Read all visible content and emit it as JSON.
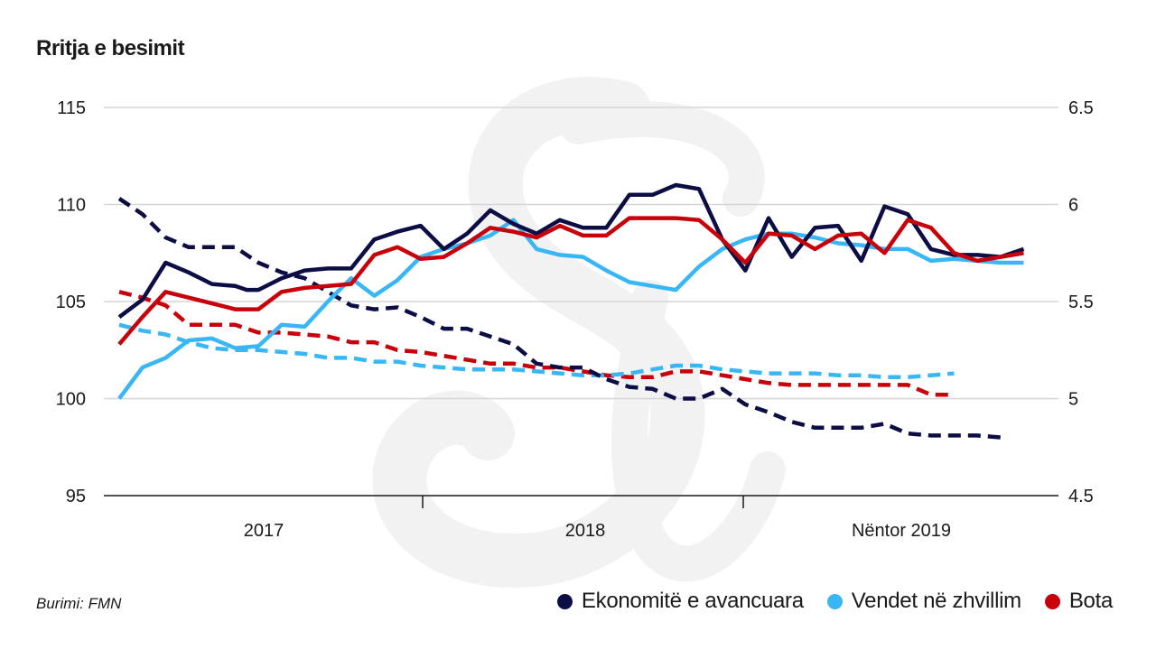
{
  "title": "Rritja e besimit",
  "source": "Burimi: FMN",
  "colors": {
    "advanced": "#0d0d45",
    "emerging": "#38b6f5",
    "world": "#c8000a",
    "grid": "#d6d6d6",
    "watermark": "#f2f2f2"
  },
  "legend": [
    {
      "label": "Ekonomitë e avancuara",
      "color": "#0d0d45",
      "icon": "circle-icon"
    },
    {
      "label": "Vendet në zhvillim",
      "color": "#38b6f5",
      "icon": "circle-icon"
    },
    {
      "label": "Bota",
      "color": "#c8000a",
      "icon": "circle-icon"
    }
  ],
  "chart_data": {
    "type": "line",
    "title": "Rritja e besimit",
    "left_axis": {
      "ylim": [
        95,
        115
      ],
      "ticks": [
        95,
        100,
        105,
        110,
        115
      ]
    },
    "right_axis": {
      "ylim": [
        4.5,
        6.5
      ],
      "ticks": [
        "4.5",
        "5",
        "5.5",
        "6",
        "6.5"
      ]
    },
    "x_range": [
      0,
      40.5
    ],
    "x_labels": [
      {
        "label": "2017",
        "x": 5.5
      },
      {
        "label": "2018",
        "x": 17.5
      },
      {
        "label": "Nëntor 2019",
        "x": 29.5
      }
    ],
    "x_ticks": [
      0,
      12,
      24,
      40.5
    ],
    "grid": true,
    "series": [
      {
        "name": "Ekonomitë e avancuara",
        "axis": "left",
        "style": "solid",
        "color": "#0d0d45",
        "x": [
          0,
          1,
          2,
          3,
          4,
          5,
          5.5,
          6,
          7,
          8,
          9,
          10,
          11,
          12,
          13,
          14,
          15,
          16,
          17,
          18,
          19,
          20,
          21,
          22,
          23,
          24,
          25,
          26,
          27,
          28,
          29,
          30,
          31,
          32,
          33,
          34,
          35,
          36,
          37,
          38,
          39
        ],
        "values": [
          104.2,
          105.1,
          107.0,
          106.5,
          105.9,
          105.8,
          105.6,
          105.6,
          106.2,
          106.6,
          106.7,
          106.7,
          108.2,
          108.6,
          108.9,
          107.7,
          108.5,
          109.7,
          109.0,
          108.5,
          109.2,
          108.8,
          108.8,
          110.5,
          110.5,
          111.0,
          110.8,
          108.2,
          106.6,
          109.3,
          107.3,
          108.8,
          108.9,
          107.1,
          109.9,
          109.5,
          107.7,
          107.4,
          107.4,
          107.3,
          107.7
        ]
      },
      {
        "name": "Vendet në zhvillim",
        "axis": "left",
        "style": "solid",
        "color": "#38b6f5",
        "x": [
          0,
          1,
          2,
          3,
          4,
          5,
          6,
          7,
          8,
          9,
          10,
          11,
          12,
          13,
          14,
          15,
          16,
          17,
          18,
          19,
          20,
          21,
          22,
          23,
          24,
          25,
          26,
          27,
          28,
          29,
          30,
          31,
          32,
          33,
          34,
          35,
          36,
          37,
          38,
          39
        ],
        "values": [
          100.0,
          101.6,
          102.1,
          103.0,
          103.1,
          102.6,
          102.7,
          103.8,
          103.7,
          105.0,
          106.2,
          105.3,
          106.1,
          107.3,
          107.7,
          108.0,
          108.4,
          109.2,
          107.7,
          107.4,
          107.3,
          106.6,
          106.0,
          105.8,
          105.6,
          106.8,
          107.7,
          108.2,
          108.5,
          108.5,
          108.3,
          108.0,
          107.9,
          107.7,
          107.7,
          107.1,
          107.2,
          107.1,
          107.0,
          107.0
        ]
      },
      {
        "name": "Bota",
        "axis": "left",
        "style": "solid",
        "color": "#c8000a",
        "x": [
          0,
          1,
          2,
          3,
          4,
          5,
          6,
          7,
          8,
          9,
          10,
          11,
          12,
          13,
          14,
          15,
          16,
          17,
          18,
          19,
          20,
          21,
          22,
          23,
          24,
          25,
          26,
          27,
          28,
          29,
          30,
          31,
          32,
          33,
          34,
          35,
          36,
          37,
          38,
          39
        ],
        "values": [
          102.8,
          104.2,
          105.5,
          105.2,
          104.9,
          104.6,
          104.6,
          105.5,
          105.7,
          105.8,
          105.9,
          107.4,
          107.8,
          107.2,
          107.3,
          108.0,
          108.8,
          108.6,
          108.3,
          108.9,
          108.4,
          108.4,
          109.3,
          109.3,
          109.3,
          109.2,
          108.2,
          107.0,
          108.5,
          108.4,
          107.7,
          108.4,
          108.5,
          107.5,
          109.2,
          108.8,
          107.5,
          107.1,
          107.3,
          107.5
        ]
      },
      {
        "name": "Ekonomitë e avancuara (e djathtë)",
        "axis": "right",
        "style": "dashed",
        "color": "#0d0d45",
        "x": [
          0,
          1,
          2,
          3,
          4,
          5,
          6,
          7,
          8,
          9,
          10,
          11,
          12,
          13,
          14,
          15,
          16,
          17,
          18,
          19,
          20,
          21,
          22,
          23,
          24,
          25,
          26,
          27,
          28,
          29,
          30,
          31,
          32,
          33,
          34,
          35,
          36,
          37,
          38
        ],
        "values": [
          6.03,
          5.95,
          5.83,
          5.78,
          5.78,
          5.78,
          5.7,
          5.65,
          5.62,
          5.55,
          5.48,
          5.46,
          5.47,
          5.42,
          5.36,
          5.36,
          5.32,
          5.28,
          5.18,
          5.16,
          5.16,
          5.1,
          5.06,
          5.05,
          5.0,
          5.0,
          5.05,
          4.97,
          4.93,
          4.88,
          4.85,
          4.85,
          4.85,
          4.87,
          4.82,
          4.81,
          4.81,
          4.81,
          4.8
        ]
      },
      {
        "name": "Vendet në zhvillim (e djathtë)",
        "axis": "right",
        "style": "dashed",
        "color": "#38b6f5",
        "x": [
          0,
          1,
          2,
          3,
          4,
          5,
          6,
          7,
          8,
          9,
          10,
          11,
          12,
          13,
          14,
          15,
          16,
          17,
          18,
          19,
          20,
          21,
          22,
          23,
          24,
          25,
          26,
          27,
          28,
          29,
          30,
          31,
          32,
          33,
          34,
          35,
          36
        ],
        "values": [
          5.38,
          5.35,
          5.33,
          5.29,
          5.26,
          5.25,
          5.25,
          5.24,
          5.23,
          5.21,
          5.21,
          5.19,
          5.19,
          5.17,
          5.16,
          5.15,
          5.15,
          5.15,
          5.14,
          5.13,
          5.12,
          5.12,
          5.13,
          5.15,
          5.17,
          5.17,
          5.15,
          5.14,
          5.13,
          5.13,
          5.13,
          5.12,
          5.12,
          5.11,
          5.11,
          5.12,
          5.13
        ]
      },
      {
        "name": "Bota (e djathtë)",
        "axis": "right",
        "style": "dashed",
        "color": "#c8000a",
        "x": [
          0,
          1,
          2,
          3,
          4,
          5,
          6,
          7,
          8,
          9,
          10,
          11,
          12,
          13,
          14,
          15,
          16,
          17,
          18,
          19,
          20,
          21,
          22,
          23,
          24,
          25,
          26,
          27,
          28,
          29,
          30,
          31,
          32,
          33,
          34,
          35,
          36
        ],
        "values": [
          5.55,
          5.52,
          5.48,
          5.38,
          5.38,
          5.38,
          5.34,
          5.34,
          5.33,
          5.32,
          5.29,
          5.29,
          5.25,
          5.24,
          5.22,
          5.2,
          5.18,
          5.18,
          5.16,
          5.16,
          5.14,
          5.12,
          5.11,
          5.11,
          5.14,
          5.14,
          5.12,
          5.1,
          5.08,
          5.07,
          5.07,
          5.07,
          5.07,
          5.07,
          5.07,
          5.02,
          5.02
        ]
      }
    ]
  }
}
